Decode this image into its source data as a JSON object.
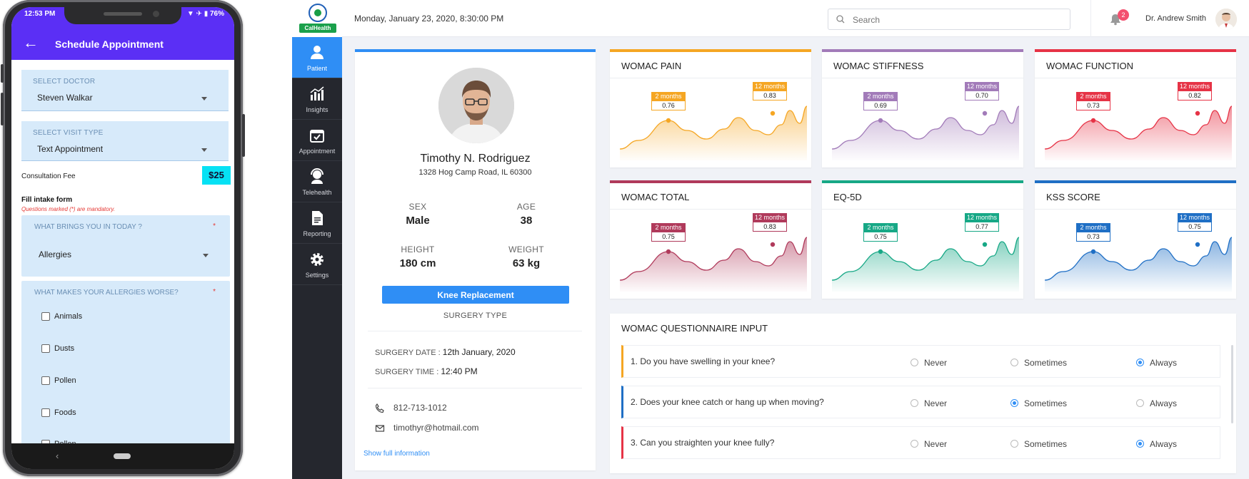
{
  "phone": {
    "status_time": "12:53 PM",
    "status_icons": "▼ ✈ ▮ 76%",
    "title": "Schedule Appointment",
    "doctor": {
      "label": "SELECT DOCTOR",
      "value": "Steven Walkar"
    },
    "visit_type": {
      "label": "SELECT VISIT TYPE",
      "value": "Text Appointment"
    },
    "fee_label": "Consultation Fee",
    "fee_value": "$25",
    "intake_title": "Fill intake form",
    "mandatory_note": "Questions marked (*) are mandatory.",
    "q1": {
      "label": "WHAT BRINGS YOU IN TODAY ?",
      "value": "Allergies"
    },
    "q2": {
      "label": "WHAT MAKES YOUR ALLERGIES WORSE?"
    },
    "options": [
      "Animals",
      "Dusts",
      "Pollen",
      "Foods",
      "Pollen"
    ]
  },
  "app": {
    "logo_text": "CalHealth",
    "date": "Monday, January 23, 2020, 8:30:00 PM",
    "search_placeholder": "Search",
    "notification_count": "2",
    "user_name": "Dr. Andrew Smith",
    "sidebar": [
      {
        "label": "Patient",
        "icon": "patient-icon"
      },
      {
        "label": "Insights",
        "icon": "insights-icon"
      },
      {
        "label": "Appointment",
        "icon": "appointment-icon"
      },
      {
        "label": "Telehealth",
        "icon": "telehealth-icon"
      },
      {
        "label": "Reporting",
        "icon": "reporting-icon"
      },
      {
        "label": "Settings",
        "icon": "settings-icon"
      }
    ]
  },
  "patient": {
    "name": "Timothy N. Rodriguez",
    "address": "1328 Hog Camp Road, IL 60300",
    "sex_label": "SEX",
    "sex": "Male",
    "age_label": "AGE",
    "age": "38",
    "height_label": "HEIGHT",
    "height": "180 cm",
    "weight_label": "WEIGHT",
    "weight": "63 kg",
    "surgery_button": "Knee Replacement",
    "surgery_type_label": "SURGERY TYPE",
    "surgery_date_label": "SURGERY DATE :",
    "surgery_date": "12th January, 2020",
    "surgery_time_label": "SURGERY TIME :",
    "surgery_time": "12:40 PM",
    "phone": "812-713-1012",
    "email": "timothyr@hotmail.com",
    "more_link": "Show full information"
  },
  "scores": [
    {
      "title": "WOMAC PAIN",
      "color": "#f5a623",
      "p1_label": "2 months",
      "p1_value": "0.76",
      "p2_label": "12 months",
      "p2_value": "0.83"
    },
    {
      "title": "WOMAC STIFFNESS",
      "color": "#a27bb9",
      "p1_label": "2 months",
      "p1_value": "0.69",
      "p2_label": "12 months",
      "p2_value": "0.70"
    },
    {
      "title": "WOMAC FUNCTION",
      "color": "#e63346",
      "p1_label": "2 months",
      "p1_value": "0.73",
      "p2_label": "12 months",
      "p2_value": "0.82"
    },
    {
      "title": "WOMAC TOTAL",
      "color": "#b03a5b",
      "p1_label": "2 months",
      "p1_value": "0.75",
      "p2_label": "12 months",
      "p2_value": "0.83"
    },
    {
      "title": "EQ-5D",
      "color": "#17a886",
      "p1_label": "2 months",
      "p1_value": "0.75",
      "p2_label": "12 months",
      "p2_value": "0.77"
    },
    {
      "title": "KSS SCORE",
      "color": "#1f6fc5",
      "p1_label": "2 months",
      "p1_value": "0.73",
      "p2_label": "12 months",
      "p2_value": "0.75"
    }
  ],
  "questionnaire": {
    "title": "WOMAC QUESTIONNAIRE INPUT",
    "options": [
      "Never",
      "Sometimes",
      "Always"
    ],
    "questions": [
      {
        "text": "1. Do you have swelling in your knee?",
        "selected": "Always",
        "accent": "#f5a623"
      },
      {
        "text": "2. Does your knee catch or hang up when moving?",
        "selected": "Sometimes",
        "accent": "#1f6fc5"
      },
      {
        "text": "3. Can you straighten your knee fully?",
        "selected": "Always",
        "accent": "#e63346"
      }
    ]
  }
}
